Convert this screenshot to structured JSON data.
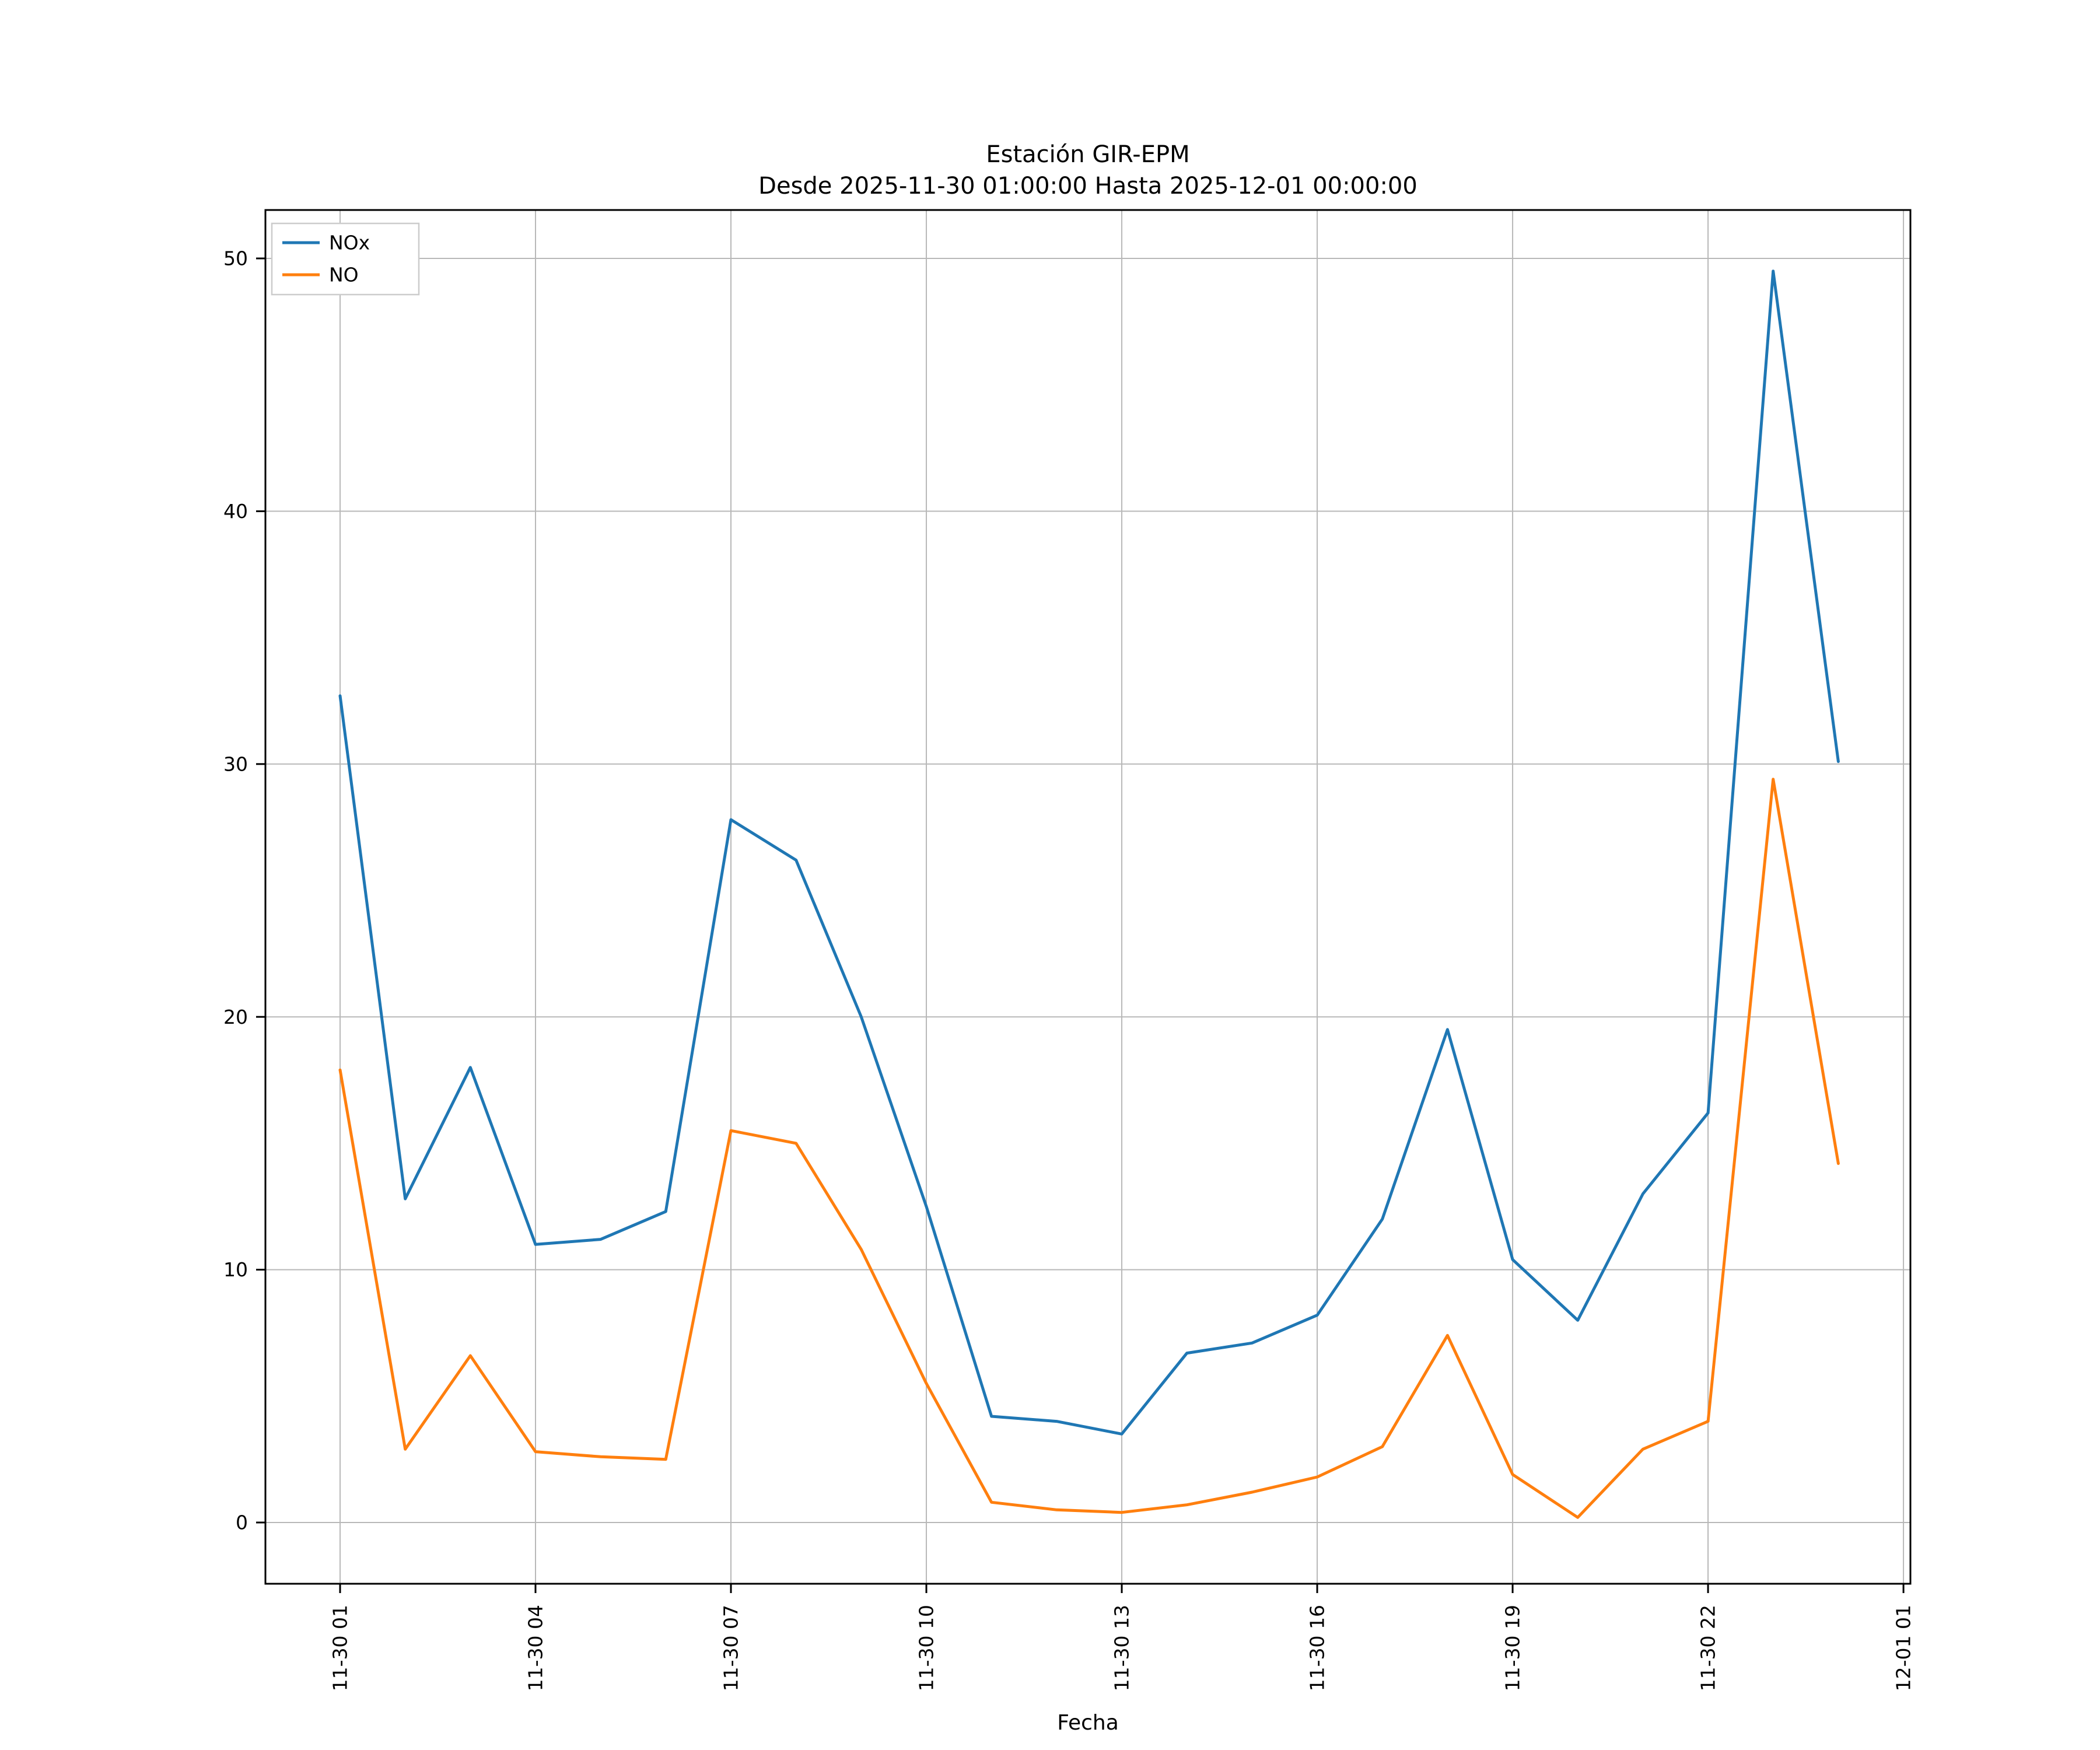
{
  "title": "Estación GIR-EPM",
  "subtitle": "Desde 2025-11-30 01:00:00 Hasta 2025-12-01 00:00:00",
  "chart_data": {
    "type": "line",
    "title": "Estación GIR-EPM",
    "subtitle": "Desde 2025-11-30 01:00:00 Hasta 2025-12-01 00:00:00",
    "xlabel": "Fecha",
    "ylabel": "",
    "grid": true,
    "grid_color": "#b8b8b8",
    "axis_color": "#000000",
    "background_color": "#ffffff",
    "legend_position": "upper-left",
    "ylim": [
      -2.4,
      51.9
    ],
    "y_ticks": [
      0,
      10,
      20,
      30,
      40,
      50
    ],
    "x_ticks": [
      {
        "hour": 1,
        "label": "11-30 01"
      },
      {
        "hour": 4,
        "label": "11-30 04"
      },
      {
        "hour": 7,
        "label": "11-30 07"
      },
      {
        "hour": 10,
        "label": "11-30 10"
      },
      {
        "hour": 13,
        "label": "11-30 13"
      },
      {
        "hour": 16,
        "label": "11-30 16"
      },
      {
        "hour": 19,
        "label": "11-30 19"
      },
      {
        "hour": 22,
        "label": "11-30 22"
      },
      {
        "hour": 25,
        "label": "12-01 01"
      }
    ],
    "x_hours": [
      1,
      2,
      3,
      4,
      5,
      6,
      7,
      8,
      9,
      10,
      11,
      12,
      13,
      14,
      15,
      16,
      17,
      18,
      19,
      20,
      21,
      22,
      23,
      24
    ],
    "series": [
      {
        "name": "NOx",
        "color": "#1f77b4",
        "values": [
          32.7,
          12.8,
          18.0,
          11.0,
          11.2,
          12.3,
          27.8,
          26.2,
          20.0,
          12.5,
          4.2,
          4.0,
          3.5,
          6.7,
          7.1,
          8.2,
          12.0,
          19.5,
          10.4,
          8.0,
          13.0,
          16.2,
          49.5,
          30.1
        ]
      },
      {
        "name": "NO",
        "color": "#ff7f0e",
        "values": [
          17.9,
          2.9,
          6.6,
          2.8,
          2.6,
          2.5,
          15.5,
          15.0,
          10.8,
          5.5,
          0.8,
          0.5,
          0.4,
          0.7,
          1.2,
          1.8,
          3.0,
          7.4,
          1.9,
          0.2,
          2.9,
          4.0,
          29.4,
          14.2
        ]
      }
    ]
  }
}
